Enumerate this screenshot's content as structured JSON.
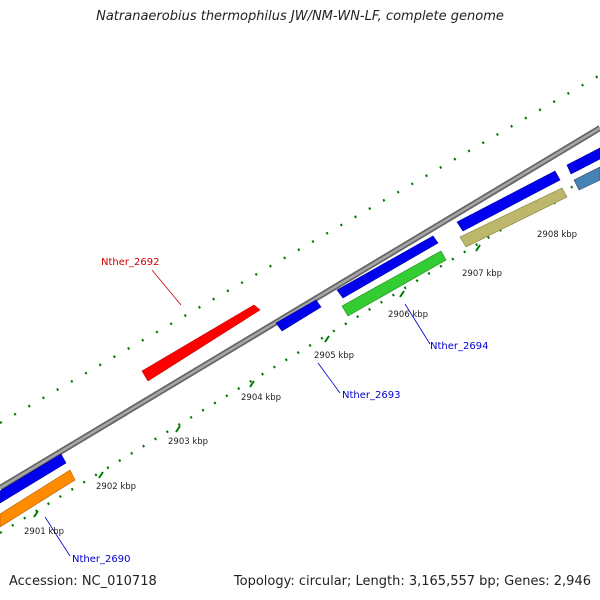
{
  "map": {
    "title": "Natranaerobius thermophilus JW/NM-WN-LF, complete genome",
    "accession": "Accession: NC_010718",
    "summary": "Topology: circular; Length: 3,165,557 bp; Genes: 2,946"
  },
  "scale_ticks": [
    "2901 kbp",
    "2902 kbp",
    "2903 kbp",
    "2904 kbp",
    "2905 kbp",
    "2906 kbp",
    "2907 kbp",
    "2908 kbp"
  ],
  "gene_labels": [
    {
      "text": "Nther_2692",
      "color": "#cc0000"
    },
    {
      "text": "Nther_2693",
      "color": "#0000cc"
    },
    {
      "text": "Nther_2694",
      "color": "#0000cc"
    },
    {
      "text": "Nther_2690",
      "color": "#0000cc"
    }
  ],
  "colors": {
    "backbone": "#8c8c8c",
    "tick": "#007a00",
    "gene_blue": "#0000ee",
    "highlight_red": "#ff0000",
    "highlight_green": "#33cc33",
    "highlight_orange": "#ff8c00",
    "highlight_khaki": "#bdb76b",
    "highlight_steel": "#4682b4"
  }
}
